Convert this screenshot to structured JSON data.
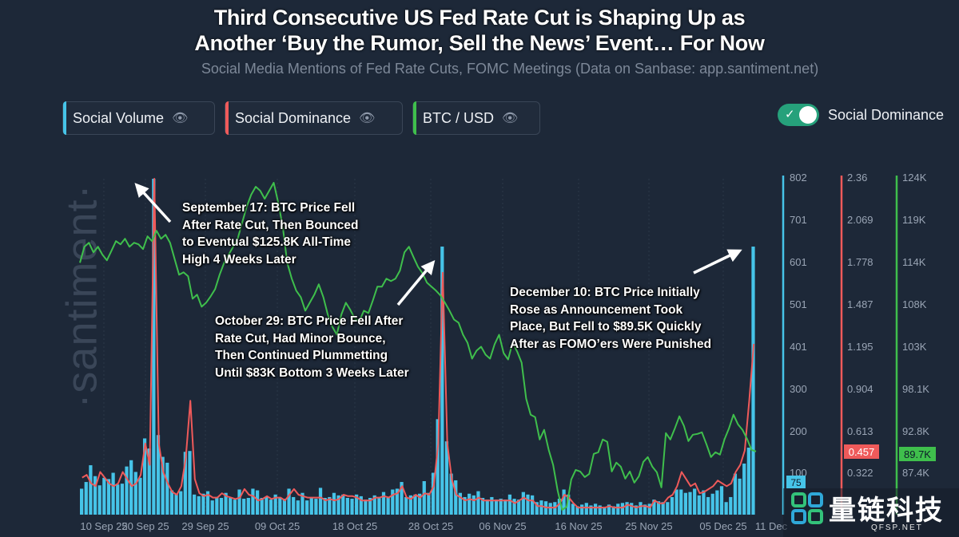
{
  "header": {
    "title_line1": "Third Consecutive US Fed Rate Cut is Shaping Up as",
    "title_line2": "Another ‘Buy the Rumor, Sell the News’ Event… For Now",
    "subtitle": "Social Media Mentions of Fed Rate Cuts, FOMC Meetings (Data on Sanbase: app.santiment.net)"
  },
  "legend": [
    {
      "label": "Social Volume",
      "color": "#46c4e8"
    },
    {
      "label": "Social Dominance",
      "color": "#ef5a5a"
    },
    {
      "label": "BTC / USD",
      "color": "#3fbf4c"
    }
  ],
  "toggle": {
    "label": "Social Dominance",
    "on": true
  },
  "watermark": "·santiment·",
  "annotations": {
    "sep": [
      "September 17: BTC Price Fell",
      "After Rate Cut, Then Bounced",
      "to Eventual $125.8K All-Time",
      "High 4 Weeks Later"
    ],
    "oct": [
      "October 29: BTC Price Fell After",
      "Rate Cut, Had Minor Bounce,",
      "Then Continued Plummetting",
      "Until $83K Bottom 3 Weeks Later"
    ],
    "dec": [
      "December 10: BTC Price Initially",
      "Rose as Announcement Took",
      "Place, But Fell to $89.5K Quickly",
      "After as FOMO’ers Were Punished"
    ]
  },
  "logo": {
    "text": "量链科技",
    "url": "QFSP.NET"
  },
  "chart_data": {
    "type": "bar+line",
    "title": "Third Consecutive US Fed Rate Cut is Shaping Up as Another ‘Buy the Rumor, Sell the News’ Event… For Now",
    "x_ticks": [
      "10 Sep 25",
      "20 Sep 25",
      "29 Sep 25",
      "09 Oct 25",
      "18 Oct 25",
      "28 Oct 25",
      "06 Nov 25",
      "16 Nov 25",
      "25 Nov 25",
      "05 Dec 25",
      "11 Dec"
    ],
    "axes": {
      "social_volume": {
        "ticks": [
          "802",
          "701",
          "601",
          "501",
          "401",
          "300",
          "200",
          "100"
        ],
        "range": [
          0,
          802
        ],
        "current": "75",
        "color": "#46c4e8"
      },
      "social_dominance": {
        "ticks": [
          "2.36",
          "2.069",
          "1.778",
          "1.487",
          "1.195",
          "0.904",
          "0.613",
          "0.322"
        ],
        "range": [
          0,
          2.36
        ],
        "current": "0.457",
        "color": "#ef5a5a"
      },
      "btc_usd": {
        "ticks": [
          "124K",
          "119K",
          "114K",
          "108K",
          "103K",
          "98.1K",
          "92.8K",
          "87.4K"
        ],
        "range_k": [
          82,
          124
        ],
        "current": "89.7K",
        "color": "#3fbf4c"
      }
    },
    "series": [
      {
        "name": "Social Volume",
        "type": "bar",
        "values": [
          62,
          78,
          118,
          92,
          70,
          88,
          85,
          100,
          72,
          74,
          115,
          130,
          102,
          88,
          182,
          158,
          802,
          190,
          138,
          124,
          58,
          50,
          56,
          150,
          152,
          48,
          44,
          50,
          56,
          34,
          42,
          40,
          52,
          40,
          36,
          60,
          38,
          40,
          62,
          58,
          40,
          42,
          36,
          48,
          40,
          38,
          62,
          42,
          34,
          52,
          34,
          40,
          38,
          64,
          40,
          42,
          52,
          46,
          48,
          40,
          38,
          48,
          44,
          36,
          40,
          46,
          42,
          54,
          40,
          60,
          62,
          78,
          42,
          46,
          48,
          50,
          80,
          52,
          100,
          228,
          640,
          175,
          98,
          82,
          52,
          42,
          50,
          46,
          56,
          40,
          36,
          42,
          36,
          38,
          36,
          48,
          38,
          36,
          54,
          48,
          46,
          30,
          34,
          32,
          28,
          30,
          38,
          60,
          48,
          26,
          20,
          24,
          28,
          22,
          26,
          22,
          18,
          24,
          20,
          26,
          28,
          30,
          28,
          22,
          30,
          24,
          26,
          36,
          32,
          30,
          30,
          42,
          60,
          60,
          52,
          54,
          62,
          46,
          58,
          42,
          50,
          58,
          68,
          30,
          42,
          98,
          86,
          122,
          160,
          640
        ]
      },
      {
        "name": "Social Dominance",
        "type": "line",
        "values": [
          0.26,
          0.28,
          0.22,
          0.2,
          0.3,
          0.26,
          0.22,
          0.2,
          0.22,
          0.3,
          0.25,
          0.2,
          0.22,
          0.28,
          0.5,
          0.35,
          2.36,
          0.5,
          0.3,
          0.22,
          0.16,
          0.14,
          0.2,
          0.4,
          0.8,
          0.25,
          0.15,
          0.13,
          0.14,
          0.12,
          0.12,
          0.15,
          0.13,
          0.12,
          0.11,
          0.12,
          0.18,
          0.14,
          0.13,
          0.1,
          0.11,
          0.13,
          0.11,
          0.12,
          0.12,
          0.1,
          0.14,
          0.18,
          0.14,
          0.13,
          0.12,
          0.12,
          0.12,
          0.12,
          0.1,
          0.11,
          0.1,
          0.11,
          0.14,
          0.13,
          0.13,
          0.12,
          0.1,
          0.1,
          0.1,
          0.12,
          0.12,
          0.13,
          0.12,
          0.14,
          0.15,
          0.2,
          0.12,
          0.11,
          0.14,
          0.12,
          0.15,
          0.14,
          0.2,
          0.5,
          1.7,
          0.5,
          0.25,
          0.14,
          0.12,
          0.1,
          0.11,
          0.1,
          0.12,
          0.1,
          0.1,
          0.1,
          0.1,
          0.1,
          0.1,
          0.1,
          0.08,
          0.1,
          0.12,
          0.1,
          0.1,
          0.06,
          0.06,
          0.05,
          0.05,
          0.05,
          0.08,
          0.14,
          0.12,
          0.08,
          0.05,
          0.05,
          0.05,
          0.05,
          0.05,
          0.05,
          0.05,
          0.06,
          0.05,
          0.05,
          0.05,
          0.07,
          0.06,
          0.05,
          0.06,
          0.06,
          0.05,
          0.1,
          0.08,
          0.08,
          0.12,
          0.14,
          0.2,
          0.3,
          0.25,
          0.2,
          0.22,
          0.15,
          0.16,
          0.18,
          0.2,
          0.24,
          0.22,
          0.2,
          0.22,
          0.3,
          0.35,
          0.45,
          0.8,
          1.2
        ]
      },
      {
        "name": "BTC / USD",
        "type": "line",
        "unit": "K USD",
        "values": [
          113.5,
          115.5,
          116.0,
          114.8,
          115.5,
          114.5,
          113.8,
          115.0,
          116.2,
          115.8,
          116.5,
          115.5,
          116.0,
          115.8,
          115.2,
          116.8,
          116.2,
          117.5,
          116.5,
          117.0,
          116.0,
          114.0,
          112.0,
          112.3,
          111.8,
          109.0,
          109.5,
          108.0,
          108.5,
          109.3,
          110.2,
          112.0,
          113.5,
          114.5,
          115.5,
          116.5,
          118.5,
          120.5,
          122.0,
          123.0,
          122.5,
          121.5,
          122.5,
          123.5,
          121.0,
          118.0,
          113.5,
          111.5,
          110.0,
          109.2,
          107.5,
          108.5,
          109.5,
          110.8,
          109.2,
          107.0,
          105.5,
          104.5,
          107.0,
          108.5,
          107.6,
          106.5,
          106.2,
          107.5,
          107.2,
          108.8,
          110.5,
          110.5,
          111.5,
          111.2,
          111.5,
          112.5,
          114.8,
          115.5,
          114.2,
          113.0,
          112.2,
          111.0,
          110.5,
          110.0,
          109.4,
          108.5,
          107.5,
          106.4,
          106.0,
          104.5,
          103.5,
          101.5,
          102.5,
          103.0,
          102.0,
          101.5,
          103.3,
          104.5,
          102.2,
          101.4,
          103.5,
          102.4,
          101.0,
          96.5,
          94.5,
          94.2,
          91.4,
          92.6,
          90.1,
          88.2,
          85.0,
          82.6,
          83.0,
          86.4,
          87.6,
          87.4,
          86.7,
          87.1,
          89.6,
          89.8,
          91.4,
          91.1,
          87.4,
          88.5,
          88.0,
          86.5,
          87.4,
          86.0,
          86.8,
          88.6,
          89.2,
          88.0,
          87.3,
          85.4,
          92.2,
          91.4,
          92.8,
          94.3,
          93.1,
          91.2,
          92.0,
          92.1,
          92.3,
          90.8,
          89.2,
          89.8,
          89.5,
          91.4,
          92.8,
          94.5,
          93.3,
          92.6,
          91.5,
          90.1,
          89.9
        ]
      }
    ]
  }
}
